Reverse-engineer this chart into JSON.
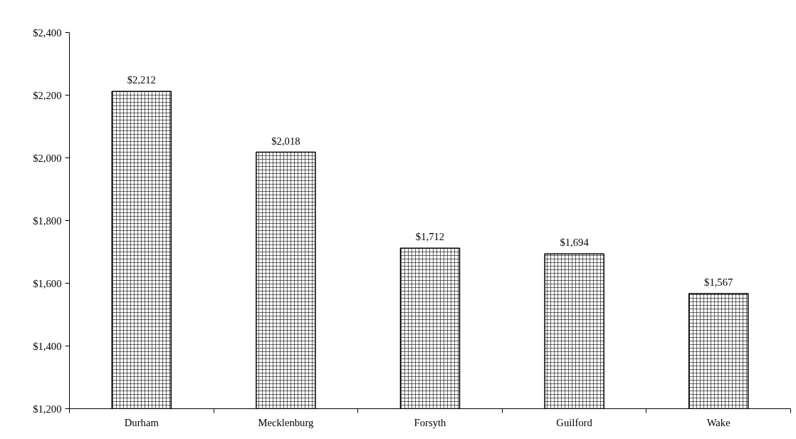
{
  "chart_data": {
    "type": "bar",
    "categories": [
      "Durham",
      "Mecklenburg",
      "Forsyth",
      "Guilford",
      "Wake"
    ],
    "values": [
      2212,
      2018,
      1712,
      1694,
      1567
    ],
    "value_labels": [
      "$2,212",
      "$2,018",
      "$1,712",
      "$1,694",
      "$1,567"
    ],
    "color": "#ffffff",
    "ylim": [
      1200,
      2400
    ],
    "yticks": [
      {
        "value": 1200,
        "label": "$1,200"
      },
      {
        "value": 1400,
        "label": "$1,400"
      },
      {
        "value": 1600,
        "label": "$1,600"
      },
      {
        "value": 1800,
        "label": "$1,800"
      },
      {
        "value": 2000,
        "label": "$2,000"
      },
      {
        "value": 2200,
        "label": "$2,200"
      },
      {
        "value": 2400,
        "label": "$2,400"
      }
    ],
    "grid": false
  }
}
